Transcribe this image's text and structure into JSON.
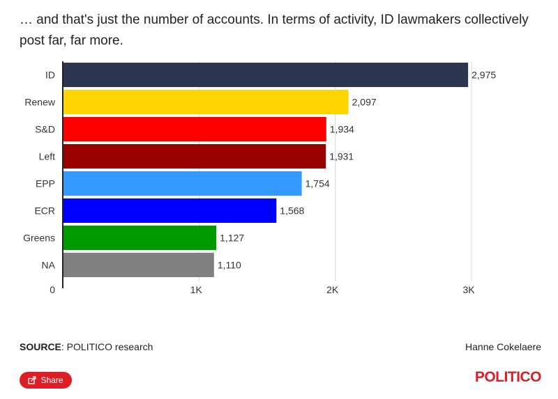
{
  "subtitle": "… and that's just the number of accounts. In terms of activity, ID lawmakers collectively post far, far more.",
  "chart_data": {
    "type": "bar",
    "orientation": "horizontal",
    "categories": [
      "ID",
      "Renew",
      "S&D",
      "Left",
      "EPP",
      "ECR",
      "Greens",
      "NA"
    ],
    "values": [
      2975,
      2097,
      1934,
      1931,
      1754,
      1568,
      1127,
      1110
    ],
    "value_labels": [
      "2,975",
      "2,097",
      "1,934",
      "1,931",
      "1,754",
      "1,568",
      "1,127",
      "1,110"
    ],
    "colors": [
      "#2d3651",
      "#ffd500",
      "#ff0000",
      "#990000",
      "#3399ff",
      "#0000ff",
      "#009900",
      "#808080"
    ],
    "xlim": [
      0,
      3000
    ],
    "xticks": [
      0,
      1000,
      2000,
      3000
    ],
    "xtick_labels": [
      "0",
      "1K",
      "2K",
      "3K"
    ],
    "grid": true,
    "legend": "none"
  },
  "footer": {
    "source_label": "SOURCE",
    "source_text": ": POLITICO research",
    "credit": "Hanne Cokelaere"
  },
  "share": {
    "label": "Share",
    "icon": "share-icon"
  },
  "brand": {
    "name": "POLITICO",
    "color": "#dc1f26"
  }
}
